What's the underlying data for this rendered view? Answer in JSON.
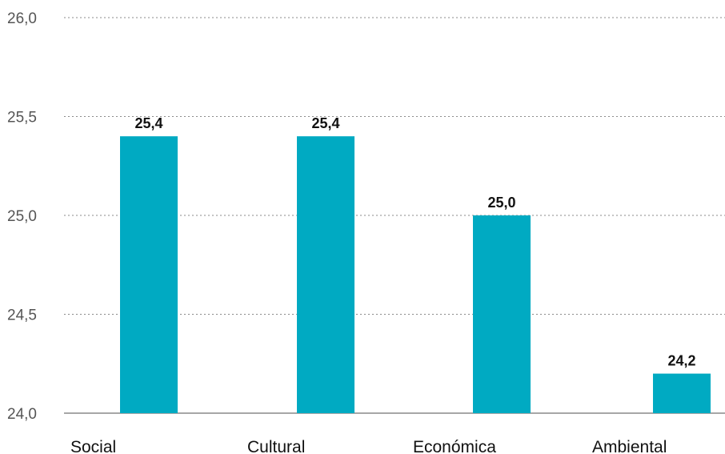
{
  "chart_data": {
    "type": "bar",
    "categories": [
      "Social",
      "Cultural",
      "Económica",
      "Ambiental"
    ],
    "values": [
      25.4,
      25.4,
      25.0,
      24.2
    ],
    "data_labels": [
      "25,4",
      "25,4",
      "25,0",
      "24,2"
    ],
    "ylim": [
      24.0,
      26.0
    ],
    "yticks": [
      24.0,
      24.5,
      25.0,
      25.5,
      26.0
    ],
    "ytick_labels": [
      "24,0",
      "24,5",
      "25,0",
      "25,5",
      "26,0"
    ],
    "bar_color": "#00AAC2",
    "grid": "dashed horizontal",
    "title": "",
    "xlabel": "",
    "ylabel": ""
  }
}
